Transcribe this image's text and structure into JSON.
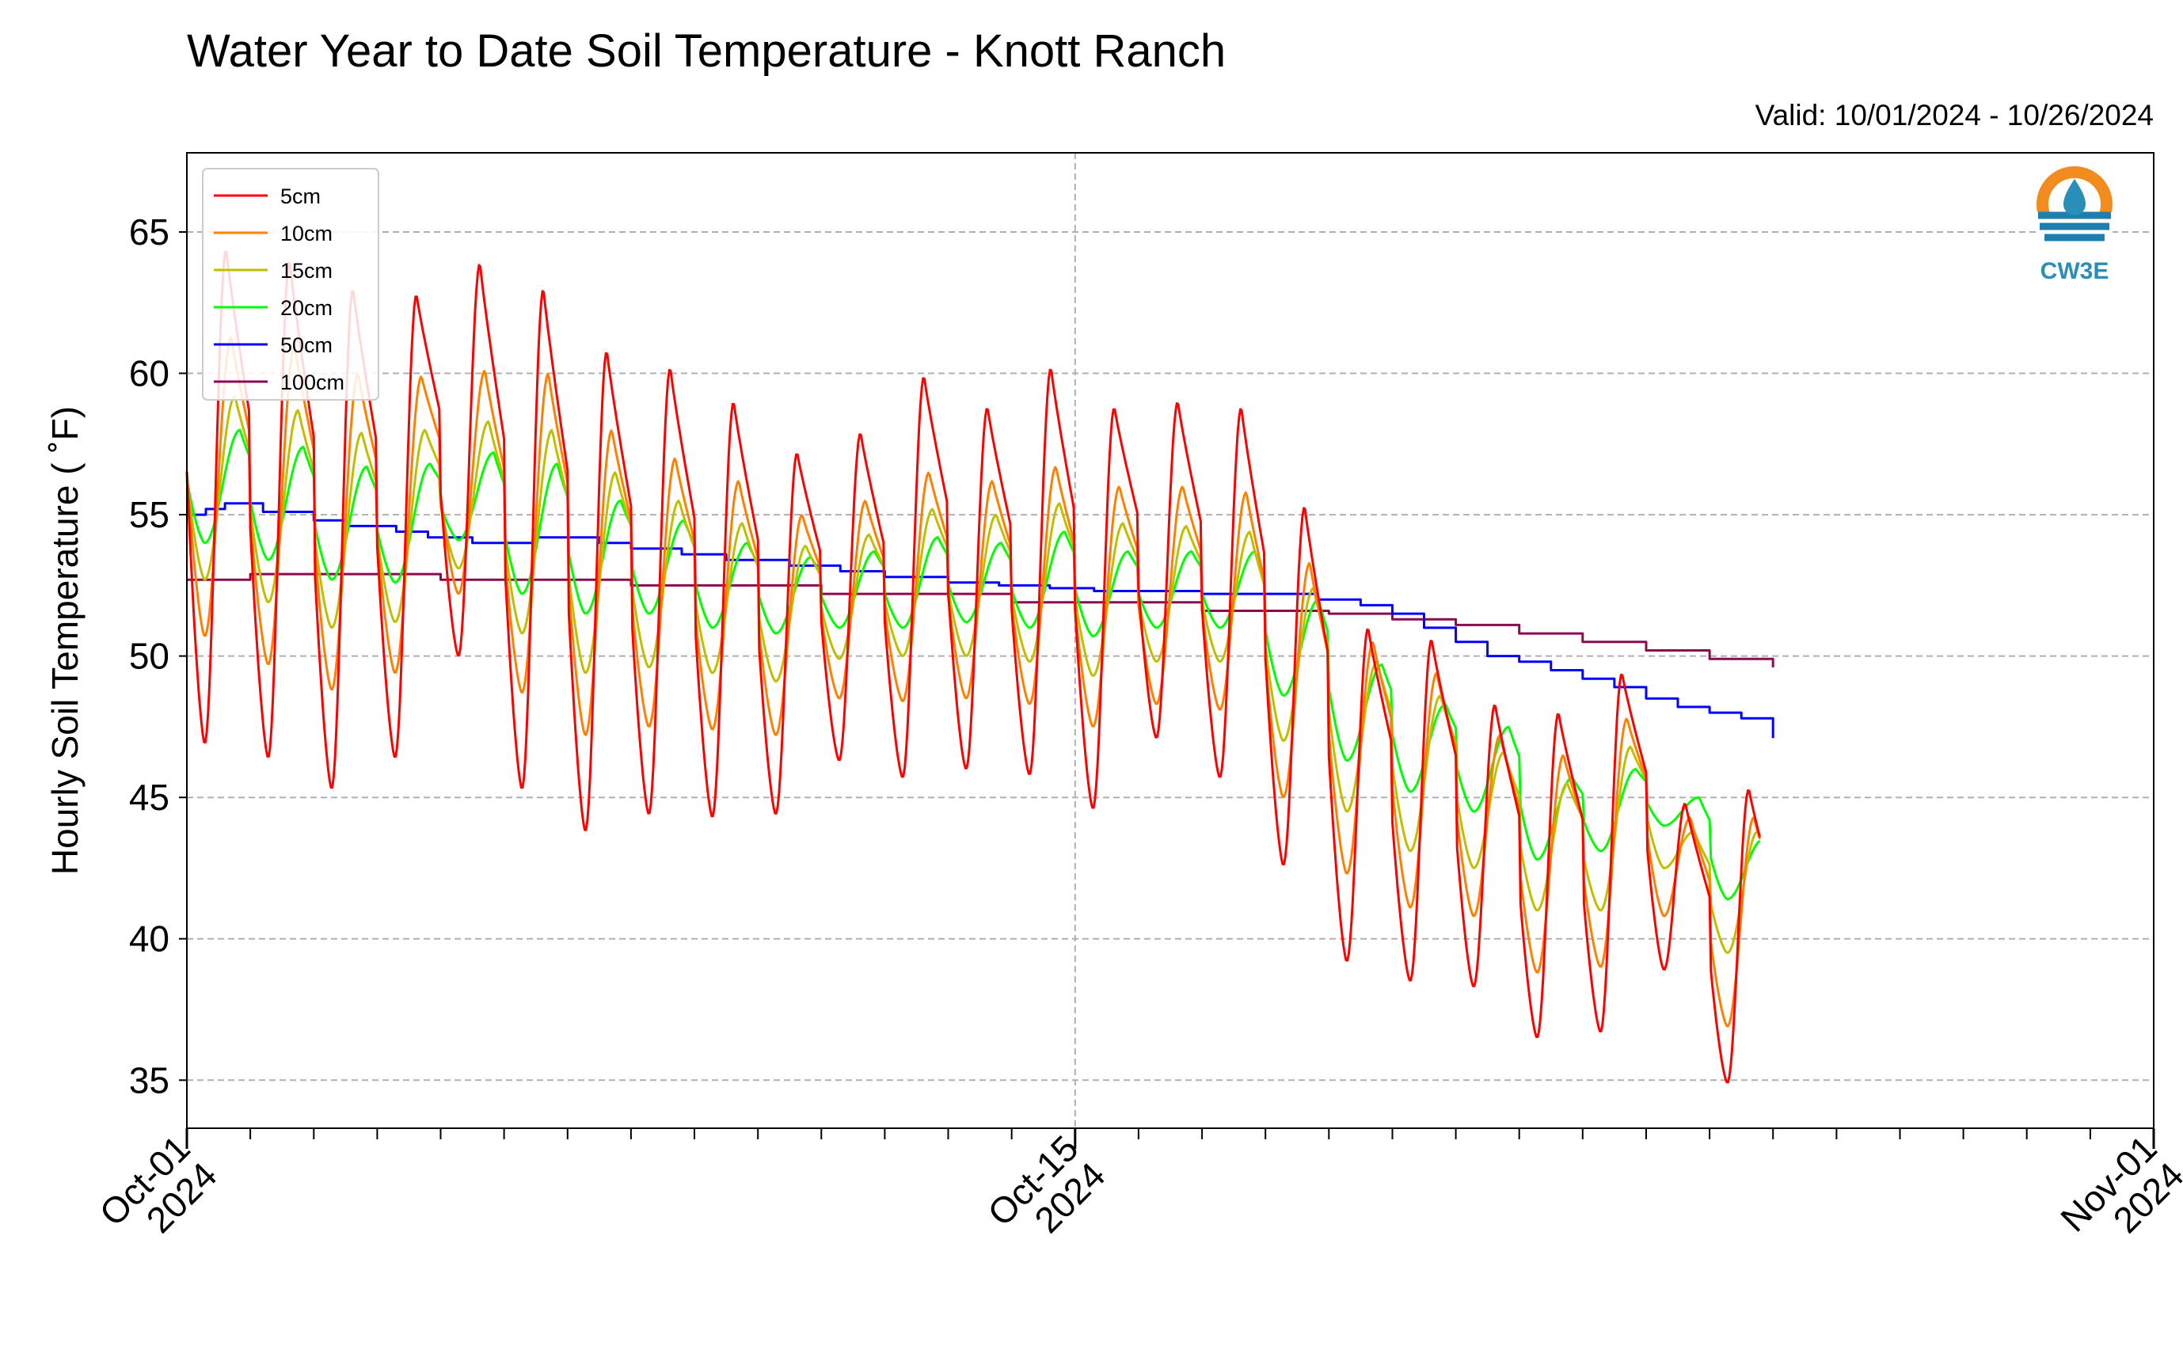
{
  "chart_data": {
    "type": "line",
    "title": "Water Year to Date Soil Temperature - Knott Ranch",
    "subtitle": "Valid: 10/01/2024 - 10/26/2024",
    "xlabel": "",
    "ylabel": "Hourly Soil Temperature ( ˚F)",
    "x_ticks": [
      {
        "day": 0,
        "label": [
          "Oct-01",
          "2024"
        ]
      },
      {
        "day": 14,
        "label": [
          "Oct-15",
          "2024"
        ]
      },
      {
        "day": 31,
        "label": [
          "Nov-01",
          "2024"
        ]
      }
    ],
    "xlim_days": [
      0,
      31
    ],
    "ylim": [
      33.3,
      67.8
    ],
    "yticks": [
      35,
      40,
      45,
      50,
      55,
      60,
      65
    ],
    "grid": true,
    "legend_position": "top-left",
    "logo": "CW3E",
    "series": [
      {
        "name": "5cm",
        "color": "#ff0000",
        "kind": "diurnal",
        "phase": 0.62,
        "max": [
          64.4,
          64.0,
          63.0,
          62.8,
          63.9,
          63.0,
          60.8,
          60.2,
          59.0,
          57.2,
          57.9,
          59.9,
          58.8,
          60.2,
          58.8,
          59.0,
          58.8,
          55.3,
          51.0,
          50.6,
          48.3,
          48.0,
          49.4,
          44.8,
          45.3
        ],
        "min": [
          46.9,
          46.4,
          45.3,
          46.4,
          50.0,
          45.3,
          43.8,
          44.4,
          44.3,
          44.4,
          46.3,
          45.7,
          46.0,
          45.8,
          44.6,
          47.1,
          45.7,
          42.6,
          39.2,
          38.5,
          38.3,
          36.5,
          36.7,
          38.9,
          34.9
        ]
      },
      {
        "name": "10cm",
        "color": "#ff8000",
        "kind": "diurnal",
        "phase": 0.7,
        "max": [
          61.3,
          61.0,
          60.0,
          59.9,
          60.1,
          60.0,
          58.0,
          57.0,
          56.2,
          55.0,
          55.5,
          56.5,
          56.2,
          56.7,
          56.0,
          56.0,
          55.8,
          53.3,
          50.5,
          49.4,
          47.2,
          46.5,
          47.8,
          44.3,
          44.3
        ],
        "min": [
          50.7,
          49.7,
          48.8,
          49.4,
          52.2,
          48.7,
          47.2,
          47.5,
          47.4,
          47.2,
          48.5,
          48.4,
          48.5,
          48.3,
          47.5,
          48.3,
          48.1,
          45.0,
          42.3,
          41.1,
          40.8,
          38.8,
          39.0,
          40.8,
          36.9
        ]
      },
      {
        "name": "15cm",
        "color": "#bfbf00",
        "kind": "diurnal",
        "phase": 0.76,
        "max": [
          59.2,
          58.7,
          57.9,
          58.0,
          58.3,
          58.0,
          56.5,
          55.5,
          54.7,
          53.9,
          54.3,
          55.2,
          55.0,
          55.4,
          54.7,
          54.6,
          54.4,
          52.4,
          49.8,
          48.6,
          46.6,
          45.5,
          46.8,
          43.8,
          43.8
        ],
        "min": [
          52.7,
          51.9,
          51.0,
          51.2,
          53.1,
          50.8,
          49.4,
          49.6,
          49.4,
          49.1,
          49.9,
          50.0,
          50.0,
          49.8,
          49.3,
          49.8,
          49.8,
          47.0,
          44.5,
          43.1,
          42.5,
          41.0,
          41.0,
          42.5,
          39.5
        ]
      },
      {
        "name": "20cm",
        "color": "#00ff00",
        "kind": "diurnal",
        "phase": 0.84,
        "max": [
          58.0,
          57.4,
          56.7,
          56.8,
          57.2,
          56.8,
          55.5,
          54.8,
          54.0,
          53.5,
          53.7,
          54.2,
          54.0,
          54.4,
          53.7,
          53.7,
          53.7,
          52.0,
          49.7,
          48.3,
          47.5,
          45.7,
          46.0,
          45.0,
          43.5
        ],
        "min": [
          54.0,
          53.4,
          52.7,
          52.6,
          54.1,
          52.2,
          51.5,
          51.5,
          51.0,
          50.8,
          51.0,
          51.0,
          51.2,
          51.0,
          50.7,
          51.0,
          51.0,
          48.6,
          46.3,
          45.2,
          44.5,
          42.8,
          43.1,
          44.0,
          41.4
        ]
      },
      {
        "name": "50cm",
        "color": "#0000ff",
        "kind": "step",
        "x": [
          0,
          0.3,
          0.6,
          1.2,
          2.0,
          2.5,
          3.3,
          3.8,
          4.5,
          5.5,
          6.5,
          7.0,
          7.8,
          8.5,
          9.5,
          10.3,
          11.0,
          12.0,
          12.8,
          13.6,
          14.3,
          15.0,
          16.0,
          17.0,
          17.8,
          18.5,
          19.0,
          19.5,
          20.0,
          20.5,
          21.0,
          21.5,
          22.0,
          22.5,
          23.0,
          23.5,
          24.0,
          24.5,
          25.0
        ],
        "y": [
          55.0,
          55.2,
          55.4,
          55.1,
          54.8,
          54.6,
          54.4,
          54.2,
          54.0,
          54.2,
          54.0,
          53.8,
          53.6,
          53.4,
          53.2,
          53.0,
          52.8,
          52.6,
          52.5,
          52.4,
          52.3,
          52.3,
          52.2,
          52.2,
          52.0,
          51.8,
          51.5,
          51.0,
          50.5,
          50.0,
          49.8,
          49.5,
          49.2,
          48.9,
          48.5,
          48.2,
          48.0,
          47.8,
          47.1
        ]
      },
      {
        "name": "100cm",
        "color": "#8b0a50",
        "kind": "step",
        "x": [
          0,
          1.0,
          4.0,
          7.0,
          10.0,
          13.0,
          16.0,
          18.0,
          19.0,
          20.0,
          21.0,
          22.0,
          23.0,
          24.0,
          25.0
        ],
        "y": [
          52.7,
          52.9,
          52.7,
          52.5,
          52.2,
          51.9,
          51.6,
          51.5,
          51.3,
          51.1,
          50.8,
          50.5,
          50.2,
          49.9,
          49.6
        ]
      }
    ]
  }
}
